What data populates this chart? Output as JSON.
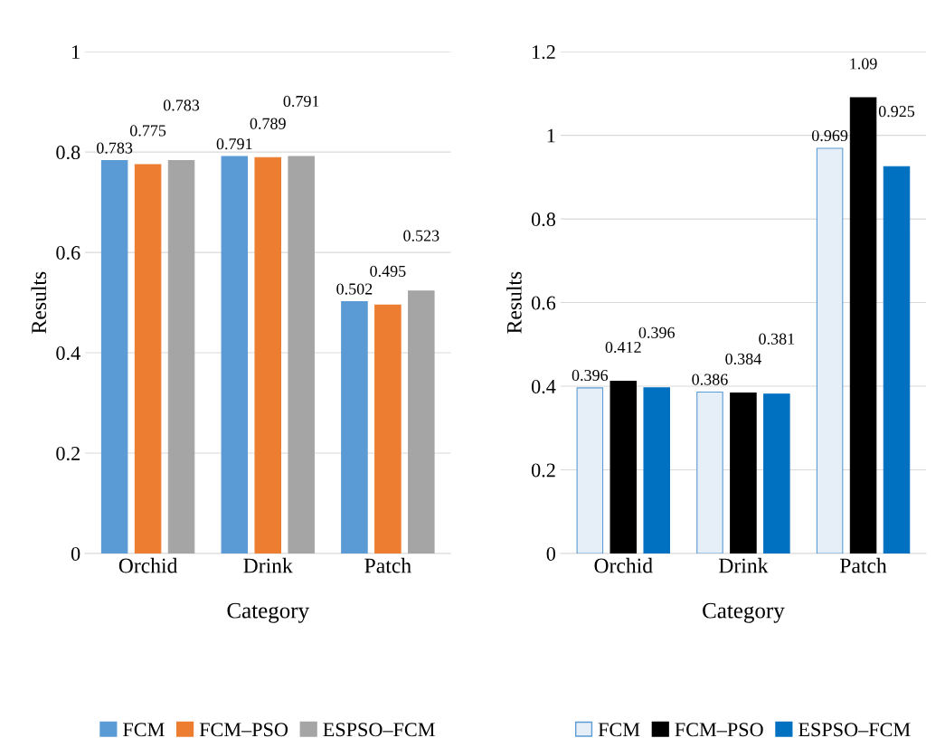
{
  "chart_data": [
    {
      "type": "bar",
      "xlabel": "Category",
      "ylabel": "Results",
      "categories": [
        "Orchid",
        "Drink",
        "Patch"
      ],
      "series": [
        {
          "name": "FCM",
          "color": "#5b9bd5",
          "values": [
            0.783,
            0.791,
            0.502
          ]
        },
        {
          "name": "FCM–PSO",
          "color": "#ed7d31",
          "values": [
            0.775,
            0.789,
            0.495
          ]
        },
        {
          "name": "ESPSO–FCM",
          "color": "#a5a5a5",
          "values": [
            0.783,
            0.791,
            0.523
          ]
        }
      ],
      "ylim": [
        0,
        1
      ],
      "yticks": [
        0,
        0.2,
        0.4,
        0.6,
        0.8,
        1
      ],
      "grid": "y",
      "legend": "bottom",
      "data_labels": true
    },
    {
      "type": "bar",
      "xlabel": "Category",
      "ylabel": "Results",
      "categories": [
        "Orchid",
        "Drink",
        "Patch"
      ],
      "series": [
        {
          "name": "FCM",
          "color": "#e6eef8",
          "values": [
            0.396,
            0.386,
            0.969
          ]
        },
        {
          "name": "FCM–PSO",
          "color": "#000000",
          "values": [
            0.412,
            0.384,
            1.09
          ]
        },
        {
          "name": "ESPSO–FCM",
          "color": "#0070c0",
          "values": [
            0.396,
            0.381,
            0.925
          ]
        }
      ],
      "ylim": [
        0,
        1.2
      ],
      "yticks": [
        0,
        0.2,
        0.4,
        0.6,
        0.8,
        1,
        1.2
      ],
      "grid": "y",
      "legend": "bottom",
      "data_labels": true
    }
  ]
}
